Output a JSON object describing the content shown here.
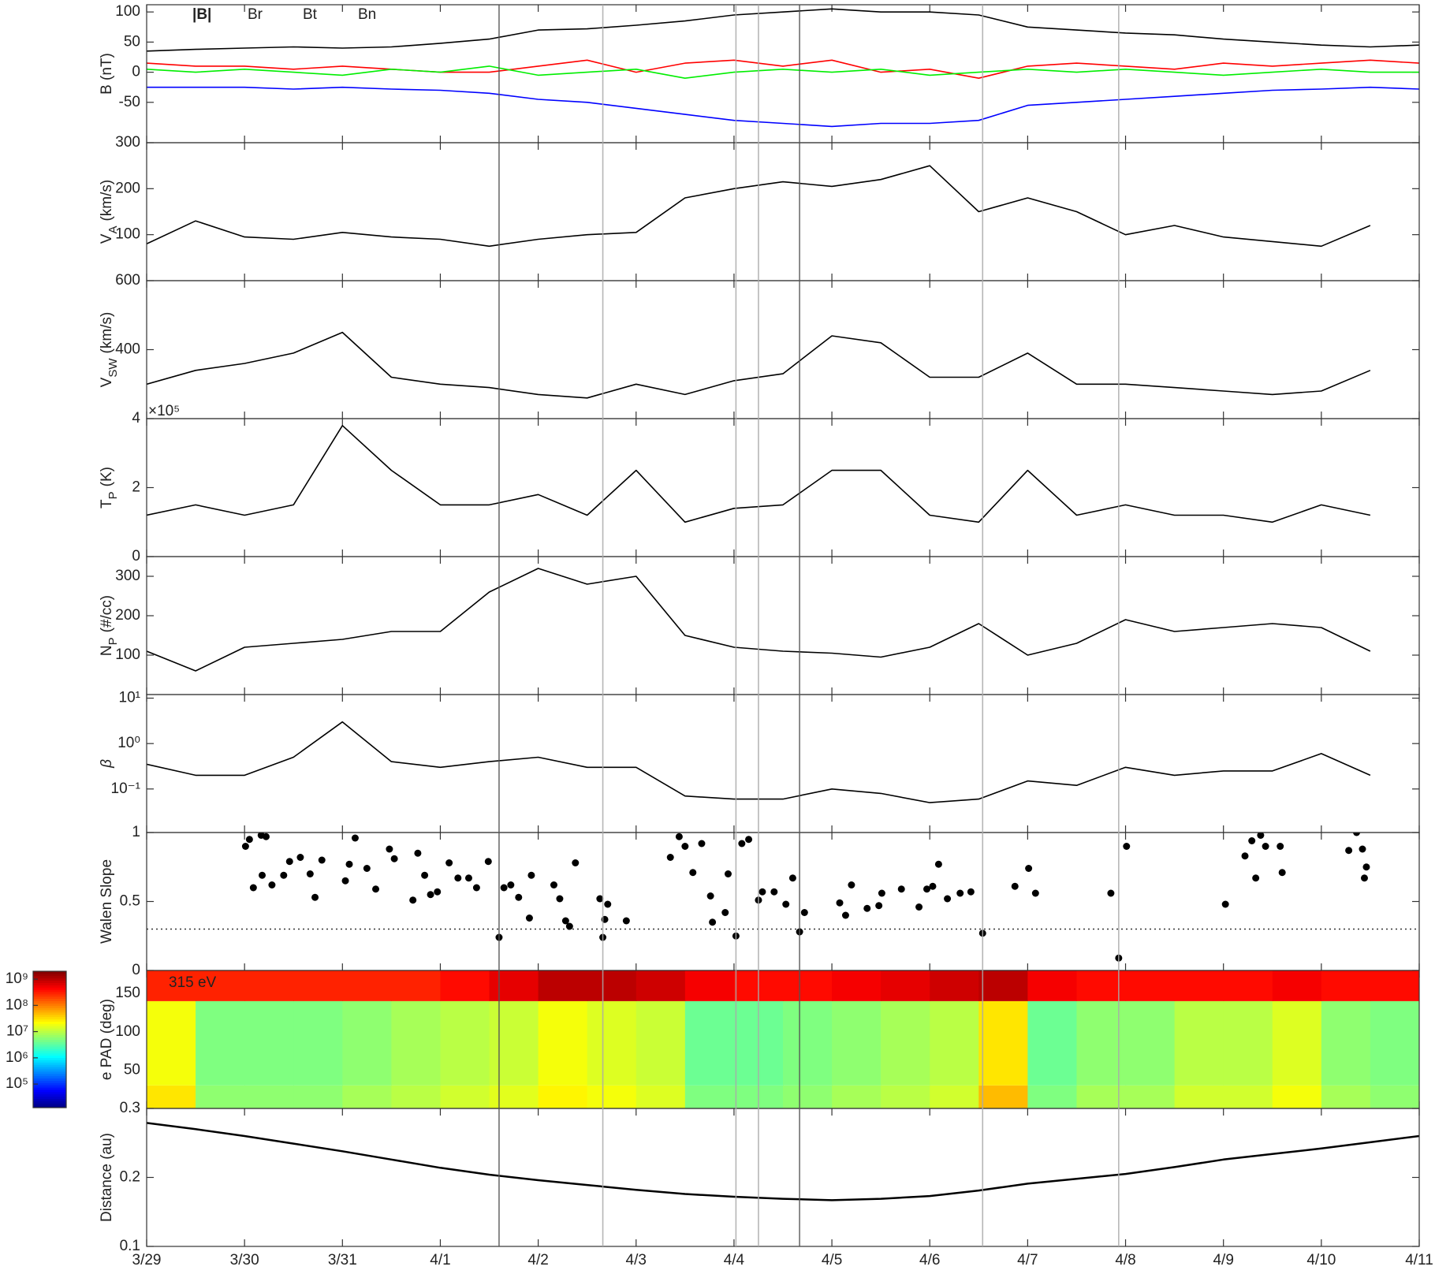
{
  "time": {
    "x": [
      0,
      0.5,
      1,
      1.5,
      2,
      2.5,
      3,
      3.5,
      4,
      4.5,
      5,
      5.5,
      6,
      6.5,
      7,
      7.5,
      8,
      8.5,
      9,
      9.5,
      10,
      10.5,
      11,
      11.5,
      12,
      12.5,
      13
    ],
    "xlim": [
      0,
      13
    ],
    "xticks": [
      {
        "value": 0,
        "label": "3/29"
      },
      {
        "value": 1,
        "label": "3/30"
      },
      {
        "value": 2,
        "label": "3/31"
      },
      {
        "value": 3,
        "label": "4/1"
      },
      {
        "value": 4,
        "label": "4/2"
      },
      {
        "value": 5,
        "label": "4/3"
      },
      {
        "value": 6,
        "label": "4/4"
      },
      {
        "value": 7,
        "label": "4/5"
      },
      {
        "value": 8,
        "label": "4/6"
      },
      {
        "value": 9,
        "label": "4/7"
      },
      {
        "value": 10,
        "label": "4/8"
      },
      {
        "value": 11,
        "label": "4/9"
      },
      {
        "value": 12,
        "label": "4/10"
      },
      {
        "value": 13,
        "label": "4/11"
      }
    ],
    "events": [
      {
        "x": 3.6,
        "color": "#555555"
      },
      {
        "x": 4.66,
        "color": "#aaaaaa"
      },
      {
        "x": 6.02,
        "color": "#aaaaaa"
      },
      {
        "x": 6.25,
        "color": "#aaaaaa"
      },
      {
        "x": 6.67,
        "color": "#555555"
      },
      {
        "x": 8.54,
        "color": "#aaaaaa"
      },
      {
        "x": 9.93,
        "color": "#aaaaaa"
      }
    ]
  },
  "chart_data": [
    {
      "type": "line",
      "ylabel": {
        "text": "B (nT)"
      },
      "ylim": [
        -117,
        112
      ],
      "yticks": [
        -50,
        0,
        50,
        100
      ],
      "legend": true,
      "series": [
        {
          "name": "|B|",
          "color": "#000000",
          "values": [
            35,
            38,
            40,
            42,
            40,
            42,
            48,
            55,
            70,
            72,
            78,
            85,
            95,
            100,
            105,
            100,
            100,
            95,
            75,
            70,
            65,
            62,
            55,
            50,
            45,
            42,
            45
          ]
        },
        {
          "name": "Br",
          "color": "#0000ff",
          "values": [
            -25,
            -25,
            -25,
            -28,
            -25,
            -28,
            -30,
            -35,
            -45,
            -50,
            -60,
            -70,
            -80,
            -85,
            -90,
            -85,
            -85,
            -80,
            -55,
            -50,
            -45,
            -40,
            -35,
            -30,
            -28,
            -25,
            -28
          ]
        },
        {
          "name": "Bt",
          "color": "#ff0000",
          "values": [
            15,
            10,
            10,
            5,
            10,
            5,
            0,
            0,
            10,
            20,
            0,
            15,
            20,
            10,
            20,
            0,
            5,
            -10,
            10,
            15,
            10,
            5,
            15,
            10,
            15,
            20,
            15
          ]
        },
        {
          "name": "Bn",
          "color": "#00ee00",
          "values": [
            5,
            0,
            5,
            0,
            -5,
            5,
            0,
            10,
            -5,
            0,
            5,
            -10,
            0,
            5,
            0,
            5,
            -5,
            0,
            5,
            0,
            5,
            0,
            -5,
            0,
            5,
            0,
            0
          ]
        }
      ]
    },
    {
      "type": "line",
      "ylabel": {
        "text": "V",
        "sub": "A",
        "unit": "(km/s)"
      },
      "ylim": [
        0,
        300
      ],
      "yticks": [
        100,
        200,
        300
      ],
      "color": "#000000",
      "values": [
        80,
        130,
        95,
        90,
        105,
        95,
        90,
        75,
        90,
        100,
        105,
        180,
        200,
        215,
        205,
        220,
        250,
        150,
        180,
        150,
        100,
        120,
        95,
        85,
        75,
        120,
        null
      ]
    },
    {
      "type": "line",
      "ylabel": {
        "text": "V",
        "sub": "SW",
        "unit": "(km/s)"
      },
      "ylim": [
        200,
        600
      ],
      "yticks": [
        400,
        600
      ],
      "color": "#000000",
      "values": [
        300,
        340,
        360,
        390,
        450,
        320,
        300,
        290,
        270,
        260,
        300,
        270,
        310,
        330,
        440,
        420,
        320,
        320,
        390,
        300,
        300,
        290,
        280,
        270,
        280,
        340,
        null
      ]
    },
    {
      "type": "line",
      "ylabel": {
        "text": "T",
        "sub": "P",
        "unit": "(K)"
      },
      "multiplier": "×10⁵",
      "ylim": [
        0,
        4
      ],
      "yticks": [
        0,
        2,
        4
      ],
      "color": "#000000",
      "values": [
        1.2,
        1.5,
        1.2,
        1.5,
        3.8,
        2.5,
        1.5,
        1.5,
        1.8,
        1.2,
        2.5,
        1.0,
        1.4,
        1.5,
        2.5,
        2.5,
        1.2,
        1.0,
        2.5,
        1.2,
        1.5,
        1.2,
        1.2,
        1.0,
        1.5,
        1.2,
        null
      ]
    },
    {
      "type": "line",
      "ylabel": {
        "text": "N",
        "sub": "P",
        "unit": "(#/cc)"
      },
      "ylim": [
        0,
        350
      ],
      "yticks": [
        100,
        200,
        300
      ],
      "color": "#000000",
      "values": [
        110,
        60,
        120,
        130,
        140,
        160,
        160,
        260,
        320,
        280,
        300,
        150,
        120,
        110,
        105,
        95,
        120,
        180,
        100,
        130,
        190,
        160,
        170,
        180,
        170,
        110,
        null
      ]
    },
    {
      "type": "line",
      "ylabel": {
        "text": "β"
      },
      "ylabel_color": "#999999",
      "log": true,
      "ylim": [
        0.011,
        12
      ],
      "yticks": [
        {
          "value": 0.1,
          "label": "10⁻¹"
        },
        {
          "value": 1,
          "label": "10⁰"
        },
        {
          "value": 10,
          "label": "10¹"
        }
      ],
      "color": "#000000",
      "values": [
        0.35,
        0.2,
        0.2,
        0.5,
        3,
        0.4,
        0.3,
        0.4,
        0.5,
        0.3,
        0.3,
        0.07,
        0.06,
        0.06,
        0.1,
        0.08,
        0.05,
        0.06,
        0.15,
        0.12,
        0.3,
        0.2,
        0.25,
        0.25,
        0.6,
        0.2,
        null
      ]
    },
    {
      "type": "scatter",
      "ylabel": {
        "text": "Walen Slope"
      },
      "ylim": [
        0,
        1
      ],
      "yticks": [
        0,
        0.5,
        1
      ],
      "color": "#000000",
      "hline": 0.3,
      "x": [
        1.01,
        1.05,
        1.17,
        1.22,
        1.09,
        1.18,
        1.28,
        1.4,
        1.46,
        1.57,
        1.67,
        1.72,
        1.79,
        2.03,
        2.07,
        2.13,
        2.25,
        2.34,
        2.48,
        2.53,
        2.72,
        2.77,
        2.84,
        2.9,
        2.97,
        3.09,
        3.18,
        3.29,
        3.37,
        3.49,
        3.6,
        3.65,
        3.72,
        3.8,
        3.93,
        3.91,
        4.16,
        4.22,
        4.28,
        4.32,
        4.38,
        4.63,
        4.66,
        4.68,
        4.71,
        4.9,
        5.35,
        5.44,
        5.5,
        5.58,
        5.67,
        5.76,
        5.78,
        5.91,
        5.94,
        6.02,
        6.08,
        6.15,
        6.25,
        6.29,
        6.41,
        6.53,
        6.6,
        6.67,
        6.72,
        7.08,
        7.14,
        7.2,
        7.36,
        7.48,
        7.51,
        7.71,
        7.89,
        7.97,
        8.03,
        8.09,
        8.18,
        8.31,
        8.42,
        8.54,
        8.87,
        9.01,
        9.08,
        9.85,
        9.93,
        10.01,
        11.02,
        11.22,
        11.29,
        11.38,
        11.43,
        11.33,
        11.58,
        11.6,
        12.28,
        12.36,
        12.42,
        12.44,
        12.46
      ],
      "values": [
        0.9,
        0.95,
        0.98,
        0.97,
        0.6,
        0.69,
        0.62,
        0.69,
        0.79,
        0.82,
        0.7,
        0.53,
        0.8,
        0.65,
        0.77,
        0.96,
        0.74,
        0.59,
        0.88,
        0.81,
        0.51,
        0.85,
        0.69,
        0.55,
        0.57,
        0.78,
        0.67,
        0.67,
        0.6,
        0.79,
        0.24,
        0.6,
        0.62,
        0.53,
        0.69,
        0.38,
        0.62,
        0.52,
        0.36,
        0.32,
        0.78,
        0.52,
        0.24,
        0.37,
        0.48,
        0.36,
        0.82,
        0.97,
        0.9,
        0.71,
        0.92,
        0.54,
        0.35,
        0.42,
        0.7,
        0.25,
        0.92,
        0.95,
        0.51,
        0.57,
        0.57,
        0.48,
        0.67,
        0.28,
        0.42,
        0.49,
        0.4,
        0.62,
        0.45,
        0.47,
        0.56,
        0.59,
        0.46,
        0.59,
        0.61,
        0.77,
        0.52,
        0.56,
        0.57,
        0.27,
        0.61,
        0.74,
        0.56,
        0.56,
        0.09,
        0.9,
        0.48,
        0.83,
        0.94,
        0.98,
        0.9,
        0.67,
        0.9,
        0.71,
        0.87,
        1.0,
        0.88,
        0.67,
        0.75
      ]
    },
    {
      "type": "heatmap",
      "ylabel": {
        "text": "e PAD (deg)"
      },
      "annotation": "315 eV",
      "ylim": [
        0,
        180
      ],
      "yticks": [
        50,
        100,
        150
      ],
      "y_edges": [
        0,
        30,
        140,
        180
      ],
      "z": [
        [
          30000000.0,
          6000000.0,
          6000000.0,
          6000000.0,
          8000000.0,
          10000000.0,
          13000000.0,
          16000000.0,
          25000000.0,
          20000000.0,
          15000000.0,
          5000000.0,
          5000000.0,
          6000000.0,
          8000000.0,
          10000000.0,
          13000000.0,
          50000000.0,
          5000000.0,
          8000000.0,
          8000000.0,
          13000000.0,
          13000000.0,
          20000000.0,
          8000000.0,
          6000000.0
        ],
        [
          20000000.0,
          5000000.0,
          5000000.0,
          5000000.0,
          6000000.0,
          8000000.0,
          10000000.0,
          12000000.0,
          20000000.0,
          15000000.0,
          12000000.0,
          4000000.0,
          4000000.0,
          5000000.0,
          6000000.0,
          8000000.0,
          10000000.0,
          30000000.0,
          4000000.0,
          6000000.0,
          6000000.0,
          10000000.0,
          10000000.0,
          15000000.0,
          6000000.0,
          5000000.0
        ],
        [
          300000000.0,
          300000000.0,
          300000000.0,
          300000000.0,
          300000000.0,
          300000000.0,
          400000000.0,
          600000000.0,
          1000000000.0,
          1000000000.0,
          800000000.0,
          500000000.0,
          400000000.0,
          400000000.0,
          500000000.0,
          600000000.0,
          800000000.0,
          1000000000.0,
          500000000.0,
          400000000.0,
          400000000.0,
          400000000.0,
          400000000.0,
          500000000.0,
          400000000.0,
          400000000.0
        ]
      ],
      "colorbar": {
        "clim": [
          12600,
          2000000000
        ],
        "log": true,
        "ticks": [
          {
            "value": 100000,
            "label": "10⁵"
          },
          {
            "value": 1000000,
            "label": "10⁶"
          },
          {
            "value": 10000000,
            "label": "10⁷"
          },
          {
            "value": 100000000,
            "label": "10⁸"
          },
          {
            "value": 1000000000,
            "label": "10⁹"
          }
        ]
      }
    },
    {
      "type": "line",
      "ylabel": {
        "text": "Distance (au)"
      },
      "ylim": [
        0.1,
        0.3
      ],
      "yticks": [
        0.1,
        0.2,
        0.3
      ],
      "color": "#000000",
      "width": 2.5,
      "values": [
        0.279,
        0.27,
        0.26,
        0.249,
        0.238,
        0.226,
        0.214,
        0.204,
        0.196,
        0.189,
        0.182,
        0.176,
        0.172,
        0.169,
        0.167,
        0.169,
        0.173,
        0.181,
        0.191,
        0.198,
        0.205,
        0.215,
        0.226,
        0.234,
        0.242,
        0.251,
        0.26
      ]
    }
  ]
}
